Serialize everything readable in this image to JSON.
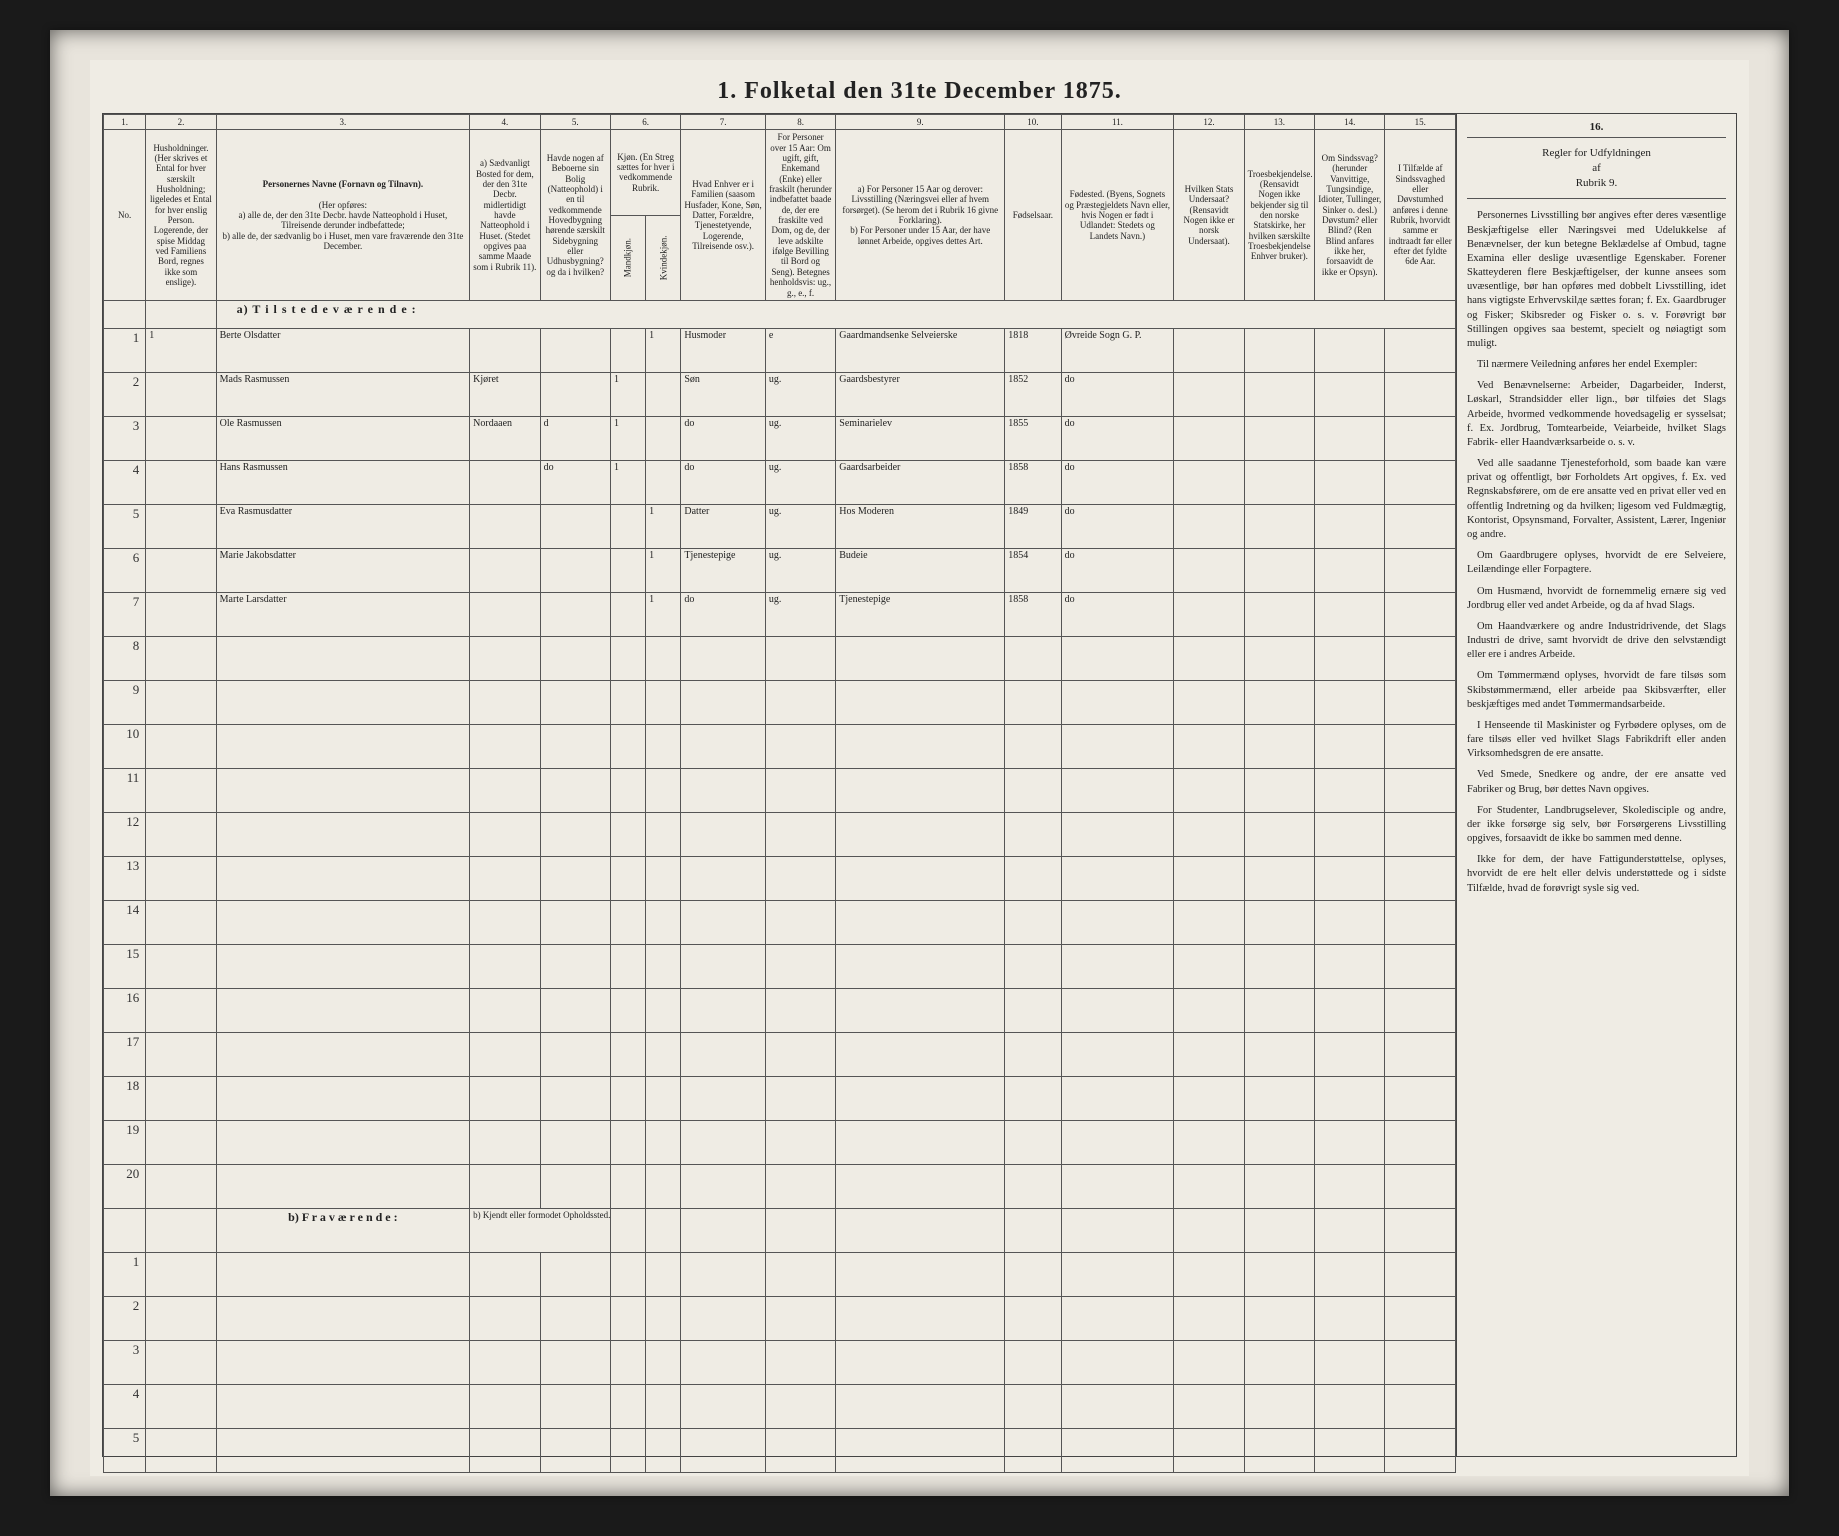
{
  "title": "1.  Folketal  den 31te December 1875.",
  "colnums": [
    "1.",
    "2.",
    "3.",
    "4.",
    "5.",
    "6.",
    "7.",
    "8.",
    "9.",
    "10.",
    "11.",
    "12.",
    "13.",
    "14.",
    "15."
  ],
  "headers": {
    "c1": "No.",
    "c2": "Husholdninger. (Her skrives et Ental for hver særskilt Husholdning; ligeledes et Ental for hver enslig Person. Logerende, der spise Middag ved Familiens Bord, regnes ikke som enslige).",
    "c3_title": "Personernes Navne (Fornavn og Tilnavn).",
    "c3_body": "(Her opføres:\na) alle de, der den 31te Decbr. havde Natteophold i Huset, Tilreisende derunder indbefattede;\nb) alle de, der sædvanlig bo i Huset, men vare fraværende den 31te December.",
    "c4": "a) Sædvanligt Bosted for dem, der den 31te Decbr. midlertidigt havde Natteophold i Huset. (Stedet opgives paa samme Maade som i Rubrik 11).",
    "c5": "Havde nogen af Beboerne sin Bolig (Natteophold) i en til vedkommende Hovedbygning hørende særskilt Sidebygning eller Udhusbygning? og da i hvilken?",
    "c6": "Kjøn. (En Streg sættes for hver i vedkommende Rubrik.",
    "c6a": "Mandkjøn.",
    "c6b": "Kvindekjøn.",
    "c7": "Hvad Enhver er i Familien (saasom Husfader, Kone, Søn, Datter, Forældre, Tjenestetyende, Logerende, Tilreisende osv.).",
    "c8": "For Personer over 15 Aar: Om ugift, gift, Enkemand (Enke) eller fraskilt (herunder indbefattet baade de, der ere fraskilte ved Dom, og de, der leve adskilte ifølge Bevilling til Bord og Seng). Betegnes henholdsvis: ug., g., e., f.",
    "c9": "a) For Personer 15 Aar og derover: Livsstilling (Næringsvei eller af hvem forsørget). (Se herom det i Rubrik 16 givne Forklaring).\nb) For Personer under 15 Aar, der have lønnet Arbeide, opgives dettes Art.",
    "c10": "Fødselsaar.",
    "c11": "Fødested. (Byens, Sognets og Præstegjeldets Navn eller, hvis Nogen er født i Udlandet: Stedets og Landets Navn.)",
    "c12": "Hvilken Stats Undersaat? (Rensavidt Nogen ikke er norsk Undersaat).",
    "c13": "Troesbekjendelse. (Rensavidt Nogen ikke bekjender sig til den norske Statskirke, her hvilken særskilte Troesbekjendelse Enhver bruker).",
    "c14": "Om Sindssvag? (herunder Vanvittige, Tungsindige, Idioter, Tullinger, Sinker o. desl.) Døvstum? eller Blind? (Ren Blind anfares ikke her, forsaavidt de ikke er Opsyn).",
    "c15": "I Tilfælde af Sindssvaghed eller Døvstumhed anføres i denne Rubrik, hvorvidt samme er indtraadt før eller efter det fyldte 6de Aar.",
    "c16_num": "16.",
    "c16_head": "Regler for Udfyldningen\naf\nRubrik 9."
  },
  "section_a": "a)  T i l s t e d e v æ r e n d e :",
  "section_b_label": "b)  F r a v æ r e n d e :",
  "section_b_note": "b) Kjendt eller formodet Opholdssted.",
  "rows_a": [
    {
      "n": "1",
      "hh": "1",
      "name": "Berte Olsdatter",
      "c4": "",
      "c5": "",
      "m": "",
      "k": "1",
      "rel": "Husmoder",
      "civ": "e",
      "occ": "Gaardmandsenkе Selveierske",
      "yr": "1818",
      "place": "Øvreide Sogn G. P."
    },
    {
      "n": "2",
      "hh": "",
      "name": "Mads Rasmussen",
      "c4": "Kjøret",
      "c5": "",
      "m": "1",
      "k": "",
      "rel": "Søn",
      "civ": "ug.",
      "occ": "Gaardsbestyrer",
      "yr": "1852",
      "place": "do"
    },
    {
      "n": "3",
      "hh": "",
      "name": "Ole Rasmussen",
      "c4": "Nordaaen",
      "c5": "d",
      "m": "1",
      "k": "",
      "rel": "do",
      "civ": "ug.",
      "occ": "Seminarielev",
      "yr": "1855",
      "place": "do"
    },
    {
      "n": "4",
      "hh": "",
      "name": "Hans Rasmussen",
      "c4": "",
      "c5": "do",
      "m": "1",
      "k": "",
      "rel": "do",
      "civ": "ug.",
      "occ": "Gaardsarbeider",
      "yr": "1858",
      "place": "do"
    },
    {
      "n": "5",
      "hh": "",
      "name": "Eva Rasmusdatter",
      "c4": "",
      "c5": "",
      "m": "",
      "k": "1",
      "rel": "Datter",
      "civ": "ug.",
      "occ": "Hos Moderen",
      "yr": "1849",
      "place": "do"
    },
    {
      "n": "6",
      "hh": "",
      "name": "Marie Jakobsdatter",
      "c4": "",
      "c5": "",
      "m": "",
      "k": "1",
      "rel": "Tjenestepige",
      "civ": "ug.",
      "occ": "Budeie",
      "yr": "1854",
      "place": "do"
    },
    {
      "n": "7",
      "hh": "",
      "name": "Marte Larsdatter",
      "c4": "",
      "c5": "",
      "m": "",
      "k": "1",
      "rel": "do",
      "civ": "ug.",
      "occ": "Tjenestepige",
      "yr": "1858",
      "place": "do"
    }
  ],
  "empty_a": [
    "8",
    "9",
    "10",
    "11",
    "12",
    "13",
    "14",
    "15",
    "16",
    "17",
    "18",
    "19",
    "20"
  ],
  "empty_b": [
    "1",
    "2",
    "3",
    "4",
    "5"
  ],
  "side_paras": [
    "Personernes Livsstilling bør angives efter deres væsentlige Beskjæftigelse eller Næringsvei med Udelukkelse af Benævnelser, der kun betegne Beklædelse af Ombud, tagne Examina eller deslige uvæsentlige Egenskaber. Forener Skatteyderen flere Beskjæftigelser, der kunne ansees som uvæsentlige, bør han opføres med dobbelt Livsstilling, idet hans vigtigste Erhvervskilде sættes foran; f. Ex. Gaardbruger og Fisker; Skibsreder og Fisker o. s. v. Forøvrigt bør Stillingen opgives saa bestemt, specielt og nøiagtigt som muligt.",
    "Til nærmere Veiledning anføres her endel Exempler:",
    "Ved Benævnelserne: Arbeider, Dagarbeider, Inderst, Løskarl, Strandsidder eller lign., bør tilføies det Slags Arbeide, hvormed vedkommende hovedsagelig er sysselsat; f. Ex. Jordbrug, Tomtearbeide, Veiarbeide, hvilket Slags Fabrik- eller Haandværksarbeide o. s. v.",
    "Ved alle saadanne Tjenesteforhold, som baade kan være privat og offentligt, bør Forholdets Art opgives, f. Ex. ved Regnskabsførere, om de ere ansatte ved en privat eller ved en offentlig Indretning og da hvilken; ligesom ved Fuldmægtig, Kontorist, Opsynsmand, Forvalter, Assistent, Lærer, Ingeniør og andre.",
    "Om Gaardbrugere oplyses, hvorvidt de ere Selveiere, Leilændinge eller Forpagtere.",
    "Om Husmænd, hvorvidt de fornemmelig ernære sig ved Jordbrug eller ved andet Arbeide, og da af hvad Slags.",
    "Om Haandværkere og andre Industridrivende, det Slags Industri de drive, samt hvorvidt de drive den selvstændigt eller ere i andres Arbeide.",
    "Om Tømmermænd oplyses, hvorvidt de fare tilsøs som Skibstømmermænd, eller arbeide paa Skibsværfter, eller beskjæftiges med andet Tømmermandsarbeide.",
    "I Henseende til Maskinister og Fyrbødere oplyses, om de fare tilsøs eller ved hvilket Slags Fabrikdrift eller anden Virksomhedsgren de ere ansatte.",
    "Ved Smede, Snedkere og andre, der ere ansatte ved Fabriker og Brug, bør dettes Navn opgives.",
    "For Studenter, Landbrugselever, Skoledisciple og andre, der ikke forsørge sig selv, bør Forsørgerens Livsstilling opgives, forsaavidt de ikke bo sammen med denne.",
    "Ikke for dem, der have Fattigunderstøttelse, oplyses, hvorvidt de ere helt eller delvis understøttede og i sidste Tilfælde, hvad de forøvrigt sysle sig ved."
  ]
}
